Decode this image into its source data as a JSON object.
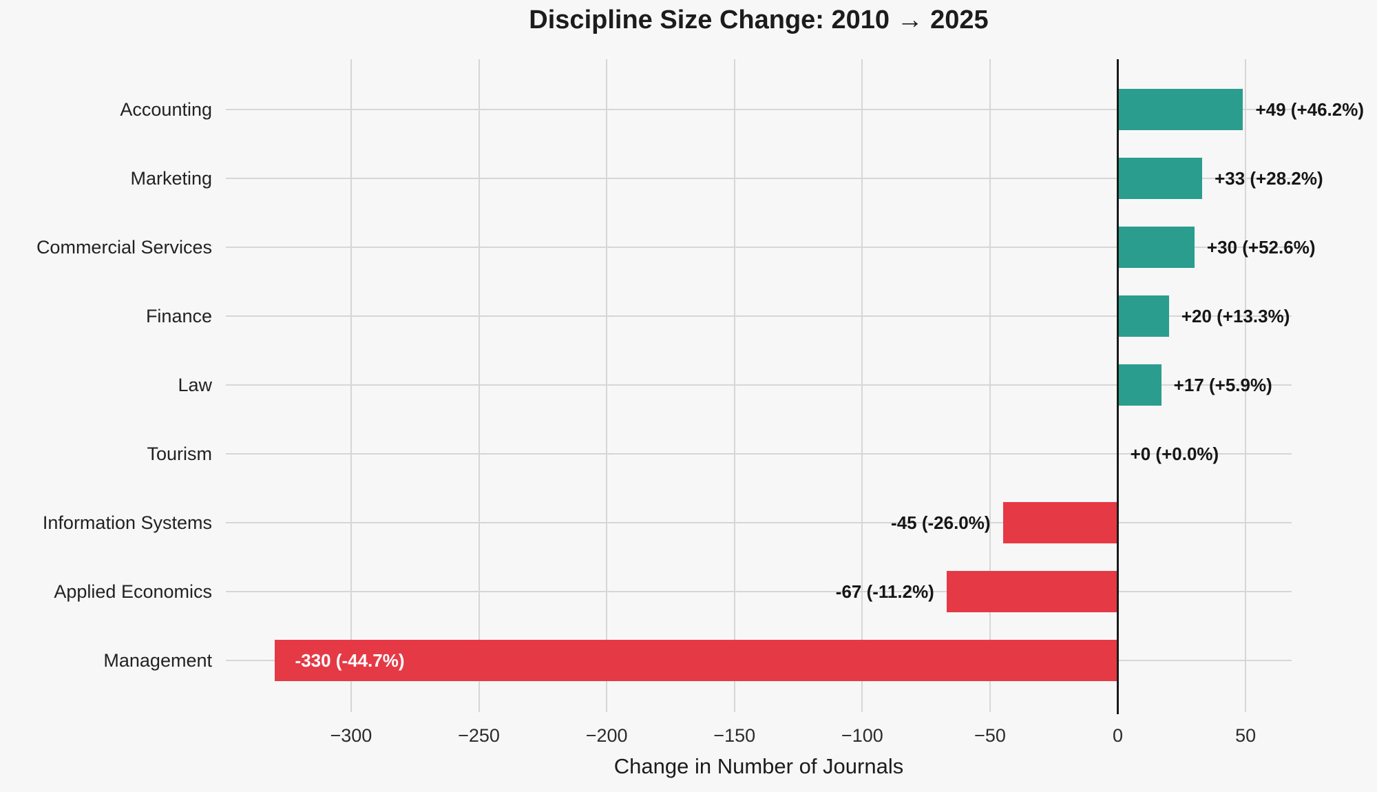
{
  "title": "Discipline Size Change: 2010 → 2025",
  "chart_data": {
    "type": "bar",
    "orientation": "horizontal",
    "title": "Discipline Size Change: 2010 → 2025",
    "xlabel": "Change in Number of Journals",
    "ylabel": "",
    "categories": [
      "Accounting",
      "Marketing",
      "Commercial Services",
      "Finance",
      "Law",
      "Tourism",
      "Information Systems",
      "Applied Economics",
      "Management"
    ],
    "values": [
      49,
      33,
      30,
      20,
      17,
      0,
      -45,
      -67,
      -330
    ],
    "percent_changes": [
      46.2,
      28.2,
      52.6,
      13.3,
      5.9,
      0.0,
      -26.0,
      -11.2,
      -44.7
    ],
    "bar_labels": [
      "+49 (+46.2%)",
      "+33 (+28.2%)",
      "+30 (+52.6%)",
      "+20 (+13.3%)",
      "+17 (+5.9%)",
      "+0 (+0.0%)",
      "-45 (-26.0%)",
      "-67 (-11.2%)",
      "-330 (-44.7%)"
    ],
    "bar_label_placements": [
      "outside",
      "outside",
      "outside",
      "outside",
      "outside",
      "outside",
      "outside",
      "outside",
      "inside"
    ],
    "xlim": [
      -349,
      68
    ],
    "xticks": [
      -300,
      -250,
      -200,
      -150,
      -100,
      -50,
      0,
      50
    ],
    "xtick_labels": [
      "−300",
      "−250",
      "−200",
      "−150",
      "−100",
      "−50",
      "0",
      "50"
    ],
    "grid": true,
    "legend": "none",
    "colors": {
      "positive_bar": "#2a9d8f",
      "negative_bar": "#e63946",
      "background": "#f7f7f7",
      "gridline": "#d6d6d6",
      "zero_line": "#1a1a1a",
      "label_text": "#161616",
      "inside_label_text": "#ffffff"
    }
  }
}
